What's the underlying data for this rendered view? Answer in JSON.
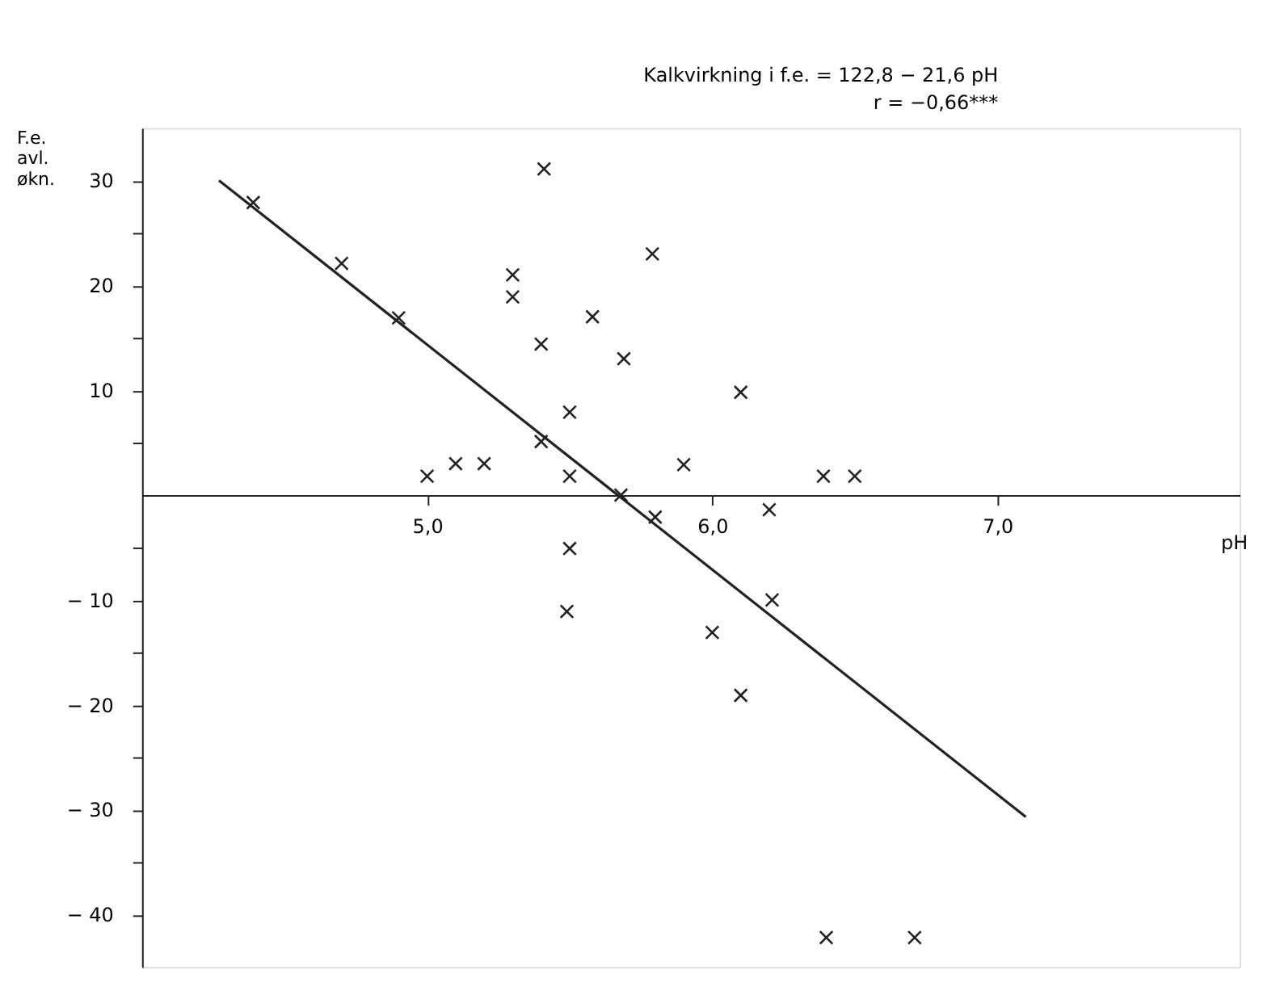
{
  "chart_data": {
    "type": "scatter",
    "xlabel": "pH",
    "ylabel": "F.e.\navl.\nøkn.",
    "annotations": [
      "Kalkvirkning i f.e. = 122,8 − 21,6 pH",
      "r = −0,66***"
    ],
    "xlim": [
      4.0,
      7.85
    ],
    "ylim": [
      -45,
      35
    ],
    "xticks": [
      {
        "value": 5,
        "label": "5,0"
      },
      {
        "value": 6,
        "label": "6,0"
      },
      {
        "value": 7,
        "label": "7,0"
      }
    ],
    "yticks": [
      {
        "value": -40,
        "label": "− 40"
      },
      {
        "value": -35,
        "label": null
      },
      {
        "value": -30,
        "label": "− 30"
      },
      {
        "value": -25,
        "label": null
      },
      {
        "value": -20,
        "label": "− 20"
      },
      {
        "value": -15,
        "label": null
      },
      {
        "value": -10,
        "label": "− 10"
      },
      {
        "value": -5,
        "label": null
      },
      {
        "value": 5,
        "label": null
      },
      {
        "value": 10,
        "label": "10"
      },
      {
        "value": 15,
        "label": null
      },
      {
        "value": 20,
        "label": "20"
      },
      {
        "value": 25,
        "label": null
      },
      {
        "value": 30,
        "label": "30"
      }
    ],
    "grid": false,
    "series": [
      {
        "color": "#222222",
        "marker": "cross",
        "x": [
          4.39,
          4.7,
          4.9,
          5.41,
          5.3,
          5.3,
          5.58,
          5.4,
          5.69,
          5.5,
          5.4,
          5.5,
          5.0,
          5.1,
          5.2,
          5.68,
          5.79,
          6.1,
          5.9,
          6.39,
          6.5,
          6.2,
          5.8,
          5.5,
          5.49,
          6.21,
          6.0,
          6.1,
          6.4,
          6.71
        ],
        "values": [
          27.9,
          22.1,
          16.9,
          31.1,
          21.0,
          18.9,
          17.0,
          14.4,
          13.0,
          7.9,
          5.1,
          1.8,
          1.8,
          3.0,
          3.0,
          0,
          23.0,
          9.8,
          2.9,
          1.8,
          1.8,
          -1.4,
          -2.1,
          -5.1,
          -11.1,
          -10.0,
          -13.1,
          -19.1,
          -42.2,
          -42.2
        ]
      },
      {
        "type": "line",
        "color": "#222222",
        "x": [
          4.27,
          7.1
        ],
        "values": [
          30.0,
          -30.7
        ]
      }
    ]
  }
}
